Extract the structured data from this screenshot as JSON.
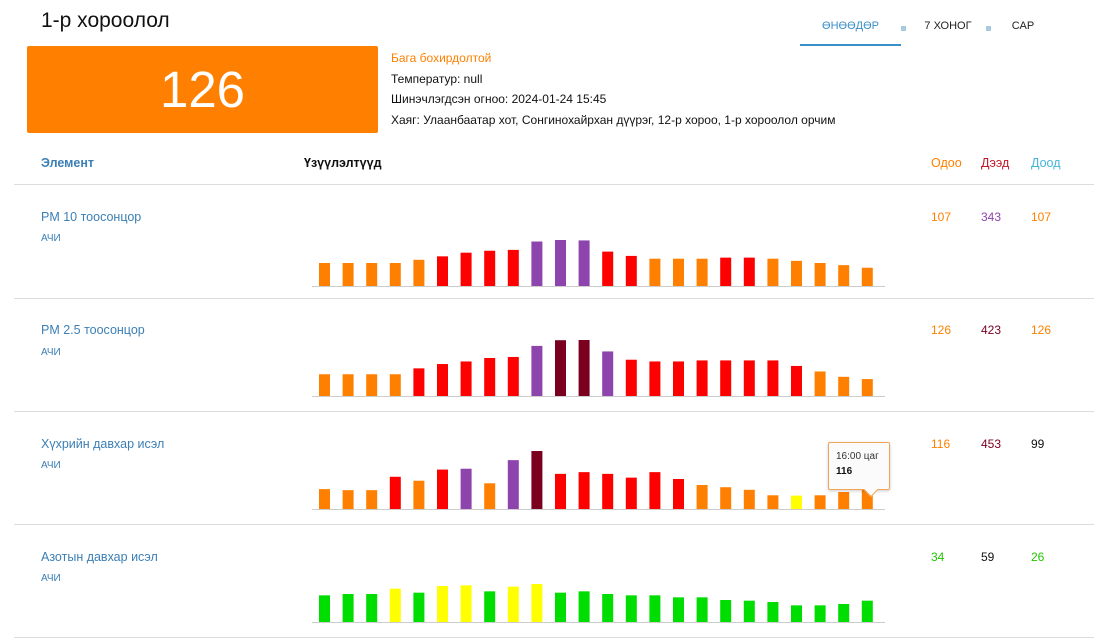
{
  "station": {
    "title": "1-р хороолол"
  },
  "period_tabs": [
    {
      "label": "ӨНӨӨДӨР",
      "active": true
    },
    {
      "label": "7 ХОНОГ",
      "active": false
    },
    {
      "label": "САР",
      "active": false
    }
  ],
  "summary": {
    "aqi": "126",
    "level": "Бага бохирдолтой",
    "temperature": "Температур: null",
    "updated": "Шинэчлэгдсэн огноо: 2024-01-24 15:45",
    "address": "Хаяг: Улаанбаатар хот, Сонгинохайрхан дүүрэг, 12-р хороо, 1-р хороолол орчим"
  },
  "table_header": {
    "element": "Элемент",
    "values": "Үзүүлэлтүүд",
    "current": "Одоо",
    "max": "Дээд",
    "min": "Доод"
  },
  "pollutants": [
    {
      "name": "PM 10 тоосонцор",
      "sub": "АЧИ",
      "current": "107",
      "max": "343",
      "min": "107",
      "current_color": "#ff8000",
      "max_color": "#8e44ad",
      "min_color": "#ff8000",
      "chart_data": {
        "type": "bar",
        "values": [
          107,
          107,
          107,
          107,
          122,
          138,
          155,
          164,
          168,
          207,
          214,
          212,
          160,
          140,
          127,
          127,
          127,
          132,
          132,
          127,
          117,
          107,
          97,
          85
        ],
        "colors": [
          "#ff8000",
          "#ff8000",
          "#ff8000",
          "#ff8000",
          "#ff8000",
          "#ff0000",
          "#ff0000",
          "#ff0000",
          "#ff0000",
          "#8e44ad",
          "#8e44ad",
          "#8e44ad",
          "#ff0000",
          "#ff0000",
          "#ff8000",
          "#ff8000",
          "#ff8000",
          "#ff0000",
          "#ff0000",
          "#ff8000",
          "#ff8000",
          "#ff8000",
          "#ff8000",
          "#ff8000"
        ]
      }
    },
    {
      "name": "PM 2.5 тоосонцор",
      "sub": "АЧИ",
      "current": "126",
      "max": "423",
      "min": "126",
      "current_color": "#ff8000",
      "max_color": "#7b0020",
      "min_color": "#ff8000",
      "chart_data": {
        "type": "bar",
        "values": [
          126,
          126,
          126,
          126,
          160,
          185,
          200,
          220,
          226,
          290,
          323,
          330,
          258,
          210,
          200,
          200,
          206,
          206,
          206,
          206,
          174,
          142,
          111,
          98
        ],
        "colors": [
          "#ff8000",
          "#ff8000",
          "#ff8000",
          "#ff8000",
          "#ff0000",
          "#ff0000",
          "#ff0000",
          "#ff0000",
          "#ff0000",
          "#8e44ad",
          "#7b0020",
          "#7b0020",
          "#8e44ad",
          "#ff0000",
          "#ff0000",
          "#ff0000",
          "#ff0000",
          "#ff0000",
          "#ff0000",
          "#ff0000",
          "#ff0000",
          "#ff8000",
          "#ff8000",
          "#ff8000"
        ]
      }
    },
    {
      "name": "Хүхрийн давхар исэл",
      "sub": "АЧИ",
      "current": "116",
      "max": "453",
      "min": "99",
      "current_color": "#ff8000",
      "max_color": "#7b0020",
      "min_color": "#111111",
      "chart_data": {
        "type": "bar",
        "values": [
          116,
          110,
          110,
          188,
          165,
          230,
          235,
          150,
          285,
          350,
          205,
          215,
          205,
          183,
          215,
          175,
          140,
          127,
          112,
          80,
          78,
          80,
          99,
          116
        ],
        "colors": [
          "#ff8000",
          "#ff8000",
          "#ff8000",
          "#ff0000",
          "#ff8000",
          "#ff0000",
          "#8e44ad",
          "#ff8000",
          "#8e44ad",
          "#7b0020",
          "#ff0000",
          "#ff0000",
          "#ff0000",
          "#ff0000",
          "#ff0000",
          "#ff0000",
          "#ff8000",
          "#ff8000",
          "#ff8000",
          "#ff8000",
          "#ffff00",
          "#ff8000",
          "#ff8000",
          "#ff8000"
        ]
      }
    },
    {
      "name": "Азотын давхар исэл",
      "sub": "АЧИ",
      "current": "34",
      "max": "59",
      "min": "26",
      "current_color": "#22c600",
      "max_color": "#111111",
      "min_color": "#22c600",
      "chart_data": {
        "type": "bar",
        "values": [
          40,
          42,
          42,
          50,
          44,
          54,
          55,
          46,
          53,
          57,
          44,
          46,
          42,
          40,
          40,
          37,
          37,
          33,
          32,
          30,
          25,
          25,
          27,
          32
        ],
        "colors": [
          "#00dd00",
          "#00dd00",
          "#00dd00",
          "#ffff00",
          "#00dd00",
          "#ffff00",
          "#ffff00",
          "#00dd00",
          "#ffff00",
          "#ffff00",
          "#00dd00",
          "#00dd00",
          "#00dd00",
          "#00dd00",
          "#00dd00",
          "#00dd00",
          "#00dd00",
          "#00dd00",
          "#00dd00",
          "#00dd00",
          "#00dd00",
          "#00dd00",
          "#00dd00",
          "#00dd00"
        ]
      }
    }
  ],
  "tooltip": {
    "time": "16:00 цаг",
    "value": "116"
  }
}
